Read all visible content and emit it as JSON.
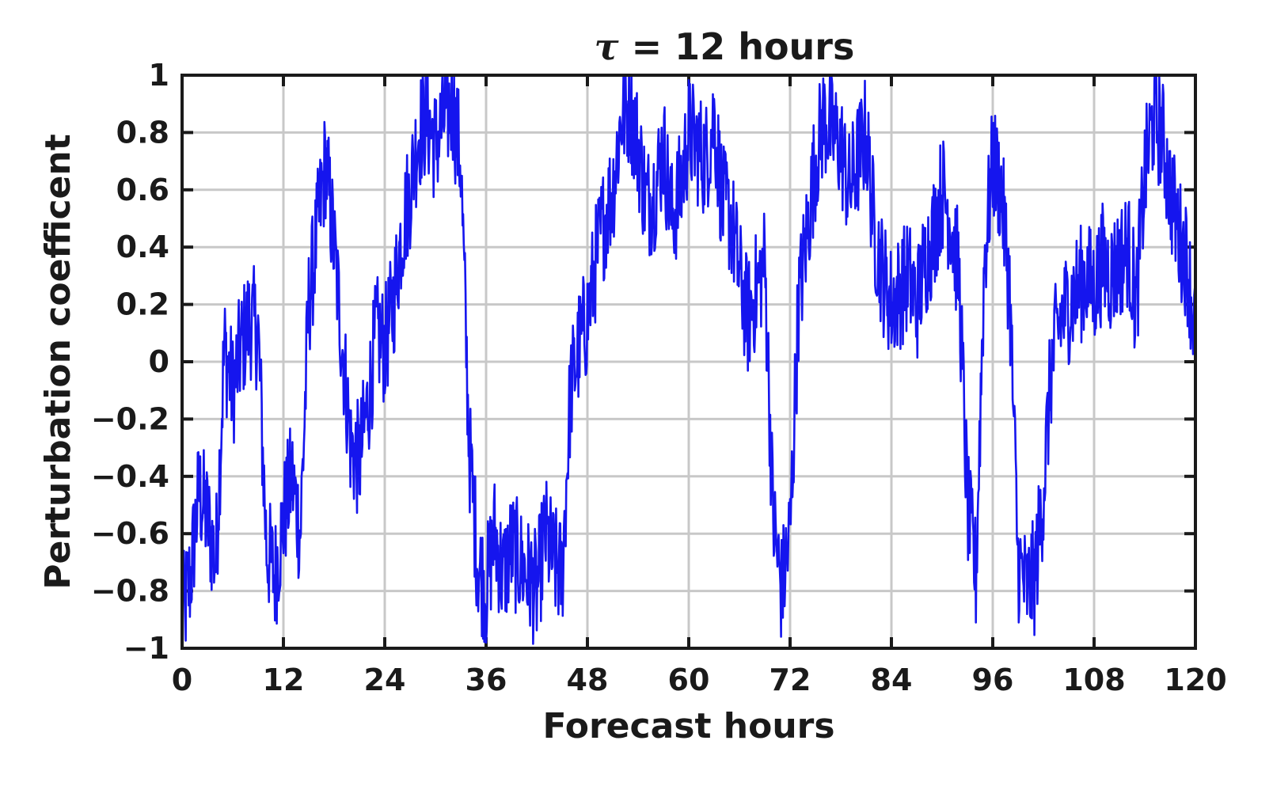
{
  "chart_data": {
    "type": "line",
    "title_symbol": "τ",
    "title_rest": " = 12 hours",
    "xlabel": "Forecast hours",
    "ylabel": "Perturbation coefficent",
    "xlim": [
      0,
      120
    ],
    "ylim": [
      -1,
      1
    ],
    "x_ticks": [
      0,
      12,
      24,
      36,
      48,
      60,
      72,
      84,
      96,
      108,
      120
    ],
    "x_tick_labels": [
      "0",
      "12",
      "24",
      "36",
      "48",
      "60",
      "72",
      "84",
      "96",
      "108",
      "120"
    ],
    "y_ticks": [
      -1,
      -0.8,
      -0.6,
      -0.4,
      -0.2,
      0,
      0.2,
      0.4,
      0.6,
      0.8,
      1
    ],
    "y_tick_labels": [
      "−1",
      "−0.8",
      "−0.6",
      "−0.4",
      "−0.2",
      "0",
      "0.2",
      "0.4",
      "0.6",
      "0.8",
      "1"
    ],
    "grid": true,
    "line_color": "#1515ee",
    "series": [
      {
        "x": [
          0,
          1,
          2,
          3,
          4,
          5,
          6,
          7,
          8,
          9,
          10,
          11,
          12,
          13,
          14,
          15,
          16,
          17,
          18,
          19,
          20,
          21,
          22,
          23,
          24,
          25,
          26,
          27,
          28,
          29,
          30,
          31,
          32,
          33,
          34,
          35,
          36,
          37,
          38,
          39,
          40,
          41,
          42,
          43,
          44,
          45,
          46,
          47,
          48,
          49,
          50,
          51,
          52,
          53,
          54,
          55,
          56,
          57,
          58,
          59,
          60,
          61,
          62,
          63,
          64,
          65,
          66,
          67,
          68,
          69,
          70,
          71,
          72,
          73,
          74,
          75,
          76,
          77,
          78,
          79,
          80,
          81,
          82,
          83,
          84,
          85,
          86,
          87,
          88,
          89,
          90,
          91,
          92,
          93,
          94,
          95,
          96,
          97,
          98,
          99,
          100,
          101,
          102,
          103,
          104,
          105,
          106,
          107,
          108,
          109,
          110,
          111,
          112,
          113,
          114,
          115,
          116,
          117,
          118,
          119,
          120
        ],
        "values": [
          -0.9,
          -0.75,
          -0.45,
          -0.55,
          -0.7,
          0.05,
          -0.1,
          0.05,
          0.15,
          0.1,
          -0.65,
          -0.75,
          -0.55,
          -0.4,
          -0.6,
          0.2,
          0.45,
          0.7,
          0.4,
          0.05,
          -0.3,
          -0.35,
          -0.15,
          0.1,
          0.05,
          0.2,
          0.45,
          0.6,
          0.8,
          0.85,
          0.75,
          0.85,
          0.9,
          0.7,
          -0.3,
          -0.7,
          -0.8,
          -0.6,
          -0.75,
          -0.65,
          -0.7,
          -0.75,
          -0.8,
          -0.6,
          -0.7,
          -0.75,
          -0.1,
          0.05,
          0.15,
          0.35,
          0.5,
          0.6,
          0.85,
          0.9,
          0.75,
          0.55,
          0.6,
          0.75,
          0.5,
          0.6,
          0.8,
          0.75,
          0.7,
          0.85,
          0.55,
          0.5,
          0.3,
          0.15,
          0.25,
          0.35,
          -0.55,
          -0.8,
          -0.6,
          0.2,
          0.45,
          0.7,
          0.85,
          0.8,
          0.75,
          0.6,
          0.7,
          0.8,
          0.45,
          0.3,
          0.2,
          0.25,
          0.3,
          0.2,
          0.35,
          0.45,
          0.6,
          0.5,
          0.3,
          -0.5,
          -0.75,
          0.35,
          0.7,
          0.6,
          0.25,
          -0.7,
          -0.8,
          -0.75,
          -0.45,
          0.0,
          0.15,
          0.2,
          0.25,
          0.3,
          0.25,
          0.35,
          0.3,
          0.35,
          0.4,
          0.2,
          0.65,
          0.85,
          0.8,
          0.6,
          0.45,
          0.35,
          0.1
        ]
      }
    ]
  }
}
